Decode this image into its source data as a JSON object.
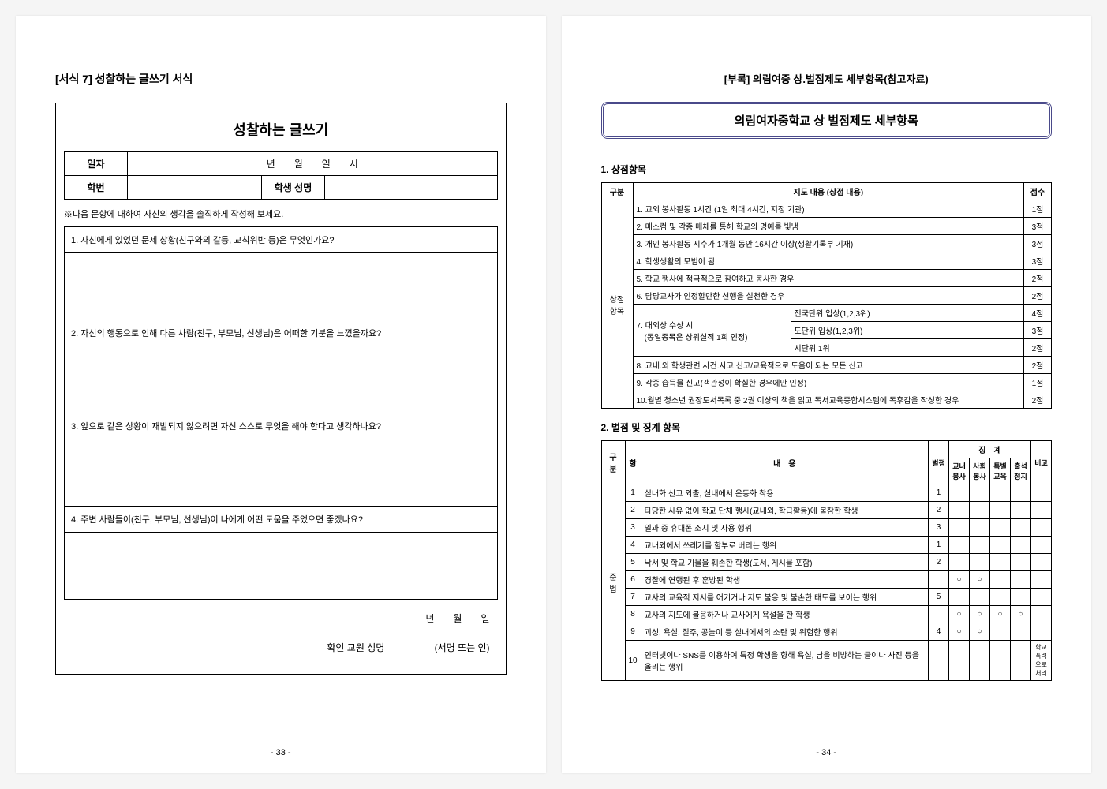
{
  "left": {
    "formNumber": "[서식 7] 성찰하는 글쓰기 서식",
    "mainTitle": "성찰하는 글쓰기",
    "headerLabels": {
      "date": "일자",
      "dateFormat": "년　　월　　일　　시",
      "id": "학번",
      "name": "학생 성명"
    },
    "note": "※다음 문항에 대하여 자신의 생각을 솔직하게 작성해 보세요.",
    "q1": "1. 자신에게 있었던 문제 상황(친구와의 갈등, 교칙위반 등)은 무엇인가요?",
    "q2": "2. 자신의 행동으로 인해 다른 사람(친구, 부모님, 선생님)은 어떠한 기분을 느꼈을까요?",
    "q3": "3. 앞으로 같은 상황이 재발되지 않으려면 자신 스스로 무엇을 해야 한다고 생각하나요?",
    "q4": "4. 주변 사람들이(친구, 부모님, 선생님)이 나에게 어떤 도움을 주었으면 좋겠나요?",
    "footerDate": "년　　월　　일",
    "signLabel": "확인 교원 성명",
    "signNote": "(서명 또는 인)",
    "pageNum": "- 33 -"
  },
  "right": {
    "appendixTitle": "[부록] 의림여중 상.벌점제도 세부항목(참고자료)",
    "systemTitle": "의림여자중학교 상 벌점제도 세부항목",
    "section1": "1. 상점항목",
    "meritHeaders": {
      "cat": "구분",
      "content": "지도 내용 (상점 내용)",
      "score": "점수"
    },
    "meritCat": "상점\n항목",
    "meritRows": [
      {
        "text": "1. 교외 봉사활동 1시간 (1일 최대 4시간, 지정 기관)",
        "score": "1점"
      },
      {
        "text": "2. 매스컴 및 각종 매체를 통해 학교의 명예를 빛냄",
        "score": "3점"
      },
      {
        "text": "3. 개인 봉사활동 시수가 1개월 동안 16시간 이상(생활기록부 기재)",
        "score": "3점"
      },
      {
        "text": "4. 학생생활의 모범이 됨",
        "score": "3점"
      },
      {
        "text": "5. 학교 행사에 적극적으로 참여하고 봉사한 경우",
        "score": "2점"
      },
      {
        "text": "6. 담당교사가 인정할만한 선행을 실천한 경우",
        "score": "2점"
      }
    ],
    "merit7": {
      "left": "7. 대외상 수상 시\n　(동일종목은 상위실적 1회 인정)",
      "sub": [
        {
          "t": "전국단위 입상(1,2,3위)",
          "s": "4점"
        },
        {
          "t": "도단위 입상(1,2,3위)",
          "s": "3점"
        },
        {
          "t": "시단위 1위",
          "s": "2점"
        }
      ]
    },
    "meritRows2": [
      {
        "text": "8. 교내.외 학생관련 사건.사고 신고/교육적으로 도움이 되는 모든 신고",
        "score": "2점"
      },
      {
        "text": "9. 각종 습득물 신고(객관성이 확실한 경우에만 인정)",
        "score": "1점"
      },
      {
        "text": "10.월별 청소년 권장도서목록 중 2권 이상의 책을 읽고 독서교육종합시스템에 독후감을 작성한 경우",
        "score": "2점"
      }
    ],
    "section2": "2. 벌점 및 징계 항목",
    "demeritHeaders": {
      "cat": "구 분",
      "num": "항",
      "content": "내　용",
      "penalty": "벌점",
      "discipline": "징　계",
      "d1": "교내\n봉사",
      "d2": "사회\n봉사",
      "d3": "특별\n교육",
      "d4": "출석\n정지",
      "note": "비고"
    },
    "demeritCat": "준 법",
    "demeritRows": [
      {
        "n": "1",
        "t": "실내화 신고 외출, 실내에서 운동화 착용",
        "p": "1",
        "d": [
          "",
          "",
          "",
          ""
        ],
        "note": ""
      },
      {
        "n": "2",
        "t": "타당한 사유 없이 학교 단체 행사(교내외, 학급활동)에 불참한 학생",
        "p": "2",
        "d": [
          "",
          "",
          "",
          ""
        ],
        "note": ""
      },
      {
        "n": "3",
        "t": "일과 중 휴대폰 소지 및 사용 행위",
        "p": "3",
        "d": [
          "",
          "",
          "",
          ""
        ],
        "note": ""
      },
      {
        "n": "4",
        "t": "교내외에서 쓰레기를 함부로 버리는 행위",
        "p": "1",
        "d": [
          "",
          "",
          "",
          ""
        ],
        "note": ""
      },
      {
        "n": "5",
        "t": "낙서 및 학교 기물을 훼손한 학생(도서, 게시물 포함)",
        "p": "2",
        "d": [
          "",
          "",
          "",
          ""
        ],
        "note": ""
      },
      {
        "n": "6",
        "t": "경찰에 연행된 후 훈방된 학생",
        "p": "",
        "d": [
          "○",
          "○",
          "",
          ""
        ],
        "note": ""
      },
      {
        "n": "7",
        "t": "교사의 교육적 지시를 어기거나 지도 불응 및 불손한 태도를 보이는 행위",
        "p": "5",
        "d": [
          "",
          "",
          "",
          ""
        ],
        "note": ""
      },
      {
        "n": "8",
        "t": "교사의 지도에 불응하거나 교사에게 욕설을 한 학생",
        "p": "",
        "d": [
          "○",
          "○",
          "○",
          "○"
        ],
        "note": ""
      },
      {
        "n": "9",
        "t": "괴성, 욕설, 질주, 공놀이 등 실내에서의 소란 및 위험한 행위",
        "p": "4",
        "d": [
          "○",
          "○",
          "",
          ""
        ],
        "note": ""
      },
      {
        "n": "10",
        "t": "인터넷이나 SNS를 이용하여 특정 학생을 향해 욕설, 남을 비방하는 글이나 사진 등을 올리는 행위",
        "p": "",
        "d": [
          "",
          "",
          "",
          ""
        ],
        "note": "학교\n폭력\n으로\n처리"
      }
    ],
    "pageNum": "- 34 -"
  }
}
